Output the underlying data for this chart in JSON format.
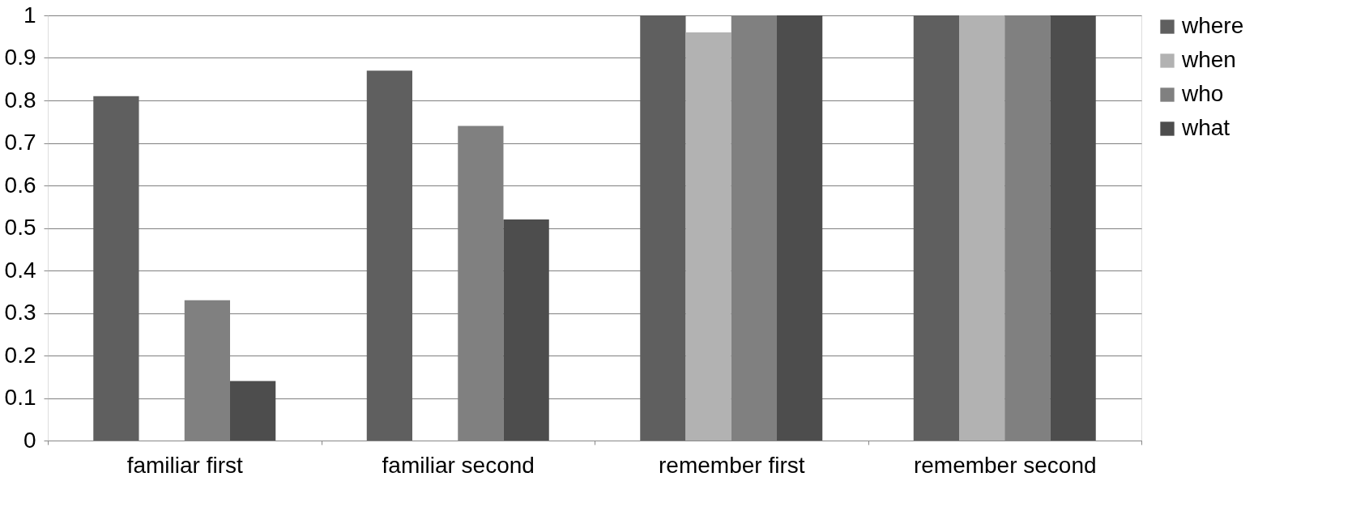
{
  "chart_data": {
    "type": "bar",
    "categories": [
      "familiar first",
      "familiar second",
      "remember first",
      "remember second"
    ],
    "series": [
      {
        "name": "where",
        "color": "#5f5f5f",
        "values": [
          0.81,
          0.87,
          1,
          1
        ]
      },
      {
        "name": "when",
        "color": "#b2b2b2",
        "values": [
          0,
          0,
          0.96,
          1
        ]
      },
      {
        "name": "who",
        "color": "#808080",
        "values": [
          0.33,
          0.74,
          1,
          1
        ]
      },
      {
        "name": "what",
        "color": "#4d4d4d",
        "values": [
          0.14,
          0.52,
          1,
          1
        ]
      }
    ],
    "ylim": [
      0,
      1
    ],
    "yticks": [
      0,
      0.1,
      0.2,
      0.3,
      0.4,
      0.5,
      0.6,
      0.7,
      0.8,
      0.9,
      1
    ],
    "grid": "y",
    "legend": "right"
  }
}
